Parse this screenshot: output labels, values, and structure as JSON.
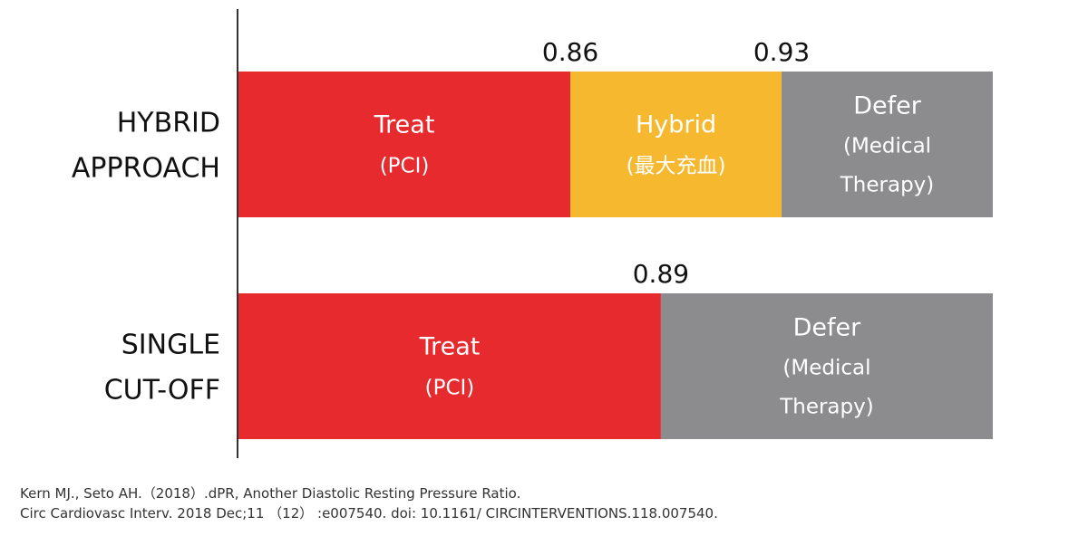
{
  "chart_data": {
    "type": "bar",
    "orientation": "horizontal",
    "stacked": true,
    "categories": [
      "HYBRID\nAPPROACH",
      "SINGLE\nCUT-OFF"
    ],
    "xlim": [
      0.75,
      1.0
    ],
    "rows": [
      {
        "category": "HYBRID\nAPPROACH",
        "thresholds": [
          "0.86",
          "0.93"
        ],
        "segments": [
          {
            "start": 0.75,
            "end": 0.86,
            "lines": [
              "Treat",
              "(PCI)"
            ],
            "color": "#e62a2e"
          },
          {
            "start": 0.86,
            "end": 0.93,
            "lines": [
              "Hybrid",
              "(最大充血)"
            ],
            "color": "#f5b82e"
          },
          {
            "start": 0.93,
            "end": 1.0,
            "lines": [
              "Defer",
              "(Medical",
              "Therapy)"
            ],
            "color": "#8c8c8f"
          }
        ]
      },
      {
        "category": "SINGLE\nCUT-OFF",
        "thresholds": [
          "0.89"
        ],
        "segments": [
          {
            "start": 0.75,
            "end": 0.89,
            "lines": [
              "Treat",
              "(PCI)"
            ],
            "color": "#e62a2e"
          },
          {
            "start": 0.89,
            "end": 1.0,
            "lines": [
              "Defer",
              "(Medical",
              "Therapy)"
            ],
            "color": "#8c8c8f"
          }
        ]
      }
    ],
    "grid": false,
    "legend": "none"
  },
  "citation": {
    "line1": "Kern MJ., Seto AH.（2018）.dPR, Another Diastolic Resting Pressure Ratio.",
    "line2": "Circ Cardiovasc Interv. 2018 Dec;11 （12） :e007540. doi: 10.1161/ CIRCINTERVENTIONS.118.007540."
  }
}
